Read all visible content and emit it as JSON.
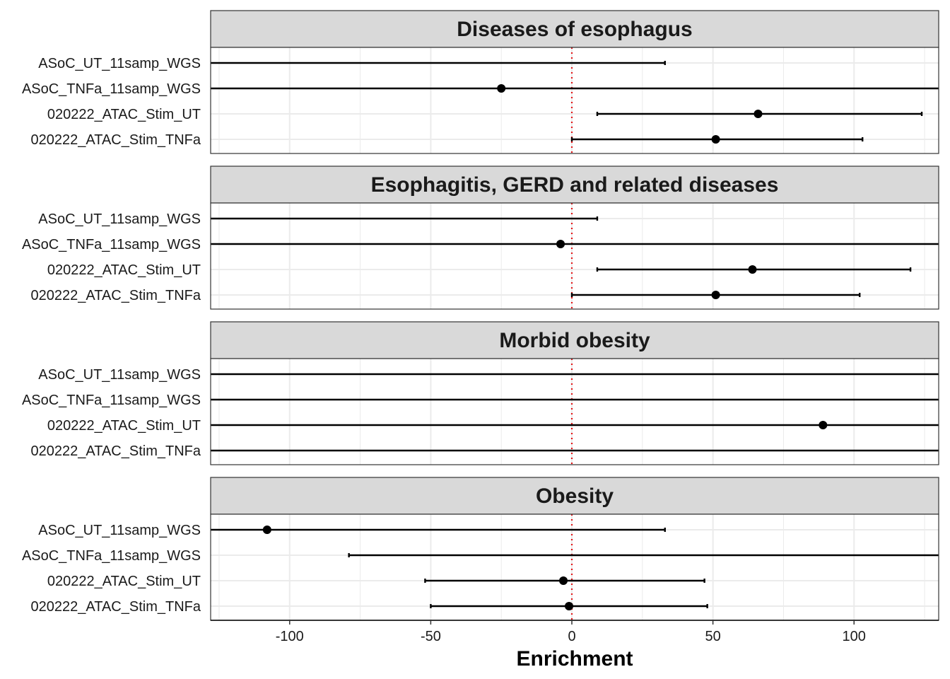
{
  "chart_data": {
    "type": "forest",
    "xlabel": "Enrichment",
    "ylabel": "",
    "xlim": [
      -128,
      130
    ],
    "x_ticks": [
      -100,
      -50,
      0,
      50,
      100
    ],
    "x_tick_labels": [
      "-100",
      "-50",
      "0",
      "50",
      "100"
    ],
    "reference_line": {
      "x": 0,
      "style": "dotted",
      "color": "#e41a1c"
    },
    "grid": true,
    "categories": [
      "ASoC_UT_11samp_WGS",
      "ASoC_TNFa_11samp_WGS",
      "020222_ATAC_Stim_UT",
      "020222_ATAC_Stim_TNFa"
    ],
    "panels": [
      {
        "title": "Diseases of esophagus",
        "rows": [
          {
            "label": "ASoC_UT_11samp_WGS",
            "estimate": null,
            "lower": null,
            "upper": 33
          },
          {
            "label": "ASoC_TNFa_11samp_WGS",
            "estimate": -25,
            "lower": null,
            "upper": null
          },
          {
            "label": "020222_ATAC_Stim_UT",
            "estimate": 66,
            "lower": 9,
            "upper": 124
          },
          {
            "label": "020222_ATAC_Stim_TNFa",
            "estimate": 51,
            "lower": 0,
            "upper": 103
          }
        ]
      },
      {
        "title": "Esophagitis, GERD and related diseases",
        "rows": [
          {
            "label": "ASoC_UT_11samp_WGS",
            "estimate": null,
            "lower": null,
            "upper": 9
          },
          {
            "label": "ASoC_TNFa_11samp_WGS",
            "estimate": -4,
            "lower": null,
            "upper": null
          },
          {
            "label": "020222_ATAC_Stim_UT",
            "estimate": 64,
            "lower": 9,
            "upper": 120
          },
          {
            "label": "020222_ATAC_Stim_TNFa",
            "estimate": 51,
            "lower": 0,
            "upper": 102
          }
        ]
      },
      {
        "title": "Morbid obesity",
        "rows": [
          {
            "label": "ASoC_UT_11samp_WGS",
            "estimate": null,
            "lower": null,
            "upper": null
          },
          {
            "label": "ASoC_TNFa_11samp_WGS",
            "estimate": null,
            "lower": null,
            "upper": null
          },
          {
            "label": "020222_ATAC_Stim_UT",
            "estimate": 89,
            "lower": null,
            "upper": null
          },
          {
            "label": "020222_ATAC_Stim_TNFa",
            "estimate": null,
            "lower": null,
            "upper": null
          }
        ]
      },
      {
        "title": "Obesity",
        "rows": [
          {
            "label": "ASoC_UT_11samp_WGS",
            "estimate": -108,
            "lower": null,
            "upper": 33
          },
          {
            "label": "ASoC_TNFa_11samp_WGS",
            "estimate": null,
            "lower": -79,
            "upper": null
          },
          {
            "label": "020222_ATAC_Stim_UT",
            "estimate": -3,
            "lower": -52,
            "upper": 47
          },
          {
            "label": "020222_ATAC_Stim_TNFa",
            "estimate": -1,
            "lower": -50,
            "upper": 48
          }
        ]
      }
    ]
  }
}
